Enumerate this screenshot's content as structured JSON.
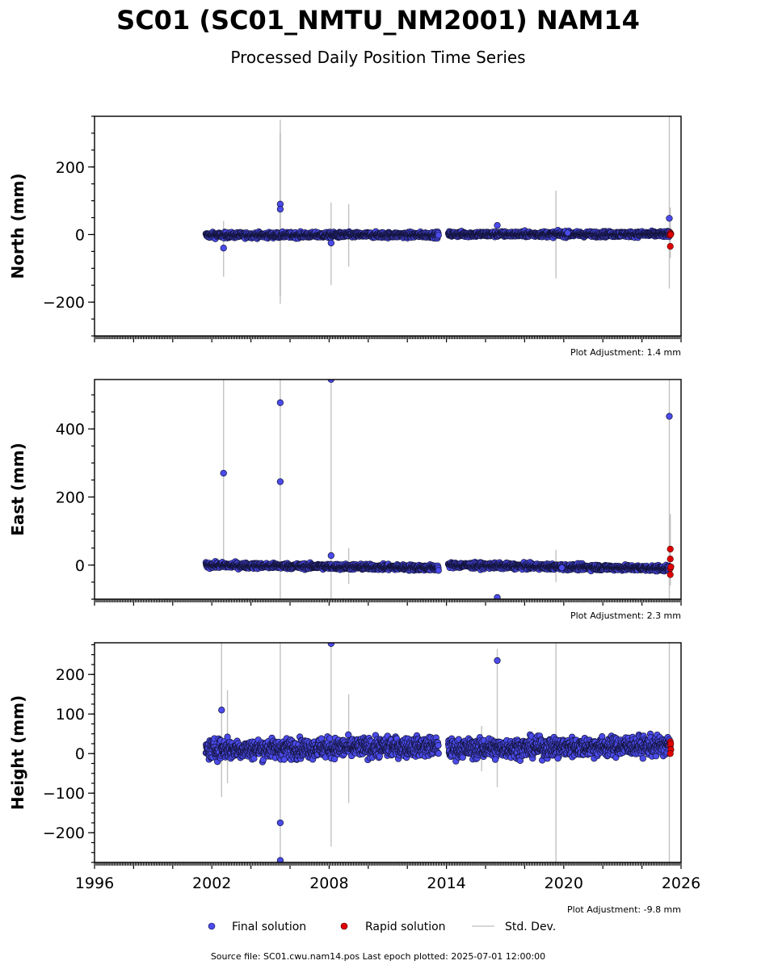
{
  "figure": {
    "title": "SC01 (SC01_NMTU_NM2001) NAM14",
    "subtitle": "Processed Daily Position Time Series",
    "source_note": "Source file: SC01.cwu.nam14.pos  Last epoch plotted: 2025-07-01 12:00:00"
  },
  "legend": {
    "final_label": "Final solution",
    "rapid_label": "Rapid solution",
    "std_label": "Std. Dev."
  },
  "colors": {
    "final": "#4b4bec",
    "final_edge": "#14143c",
    "rapid": "#e00000",
    "std_dev": "#b4b4b4"
  },
  "chart_data": [
    {
      "type": "scatter",
      "name": "north",
      "ylabel": "North (mm)",
      "adjustment": "Plot Adjustment: 1.4 mm",
      "xlim": [
        1996.0,
        2026.0
      ],
      "ylim": [
        -300,
        350
      ],
      "yticks": [
        -200,
        0,
        200
      ],
      "xtick_labels": [],
      "baseline": {
        "segments": [
          [
            2001.7,
            2013.6,
            -2,
            -1,
            4
          ],
          [
            2014.1,
            2025.4,
            1,
            1,
            4
          ]
        ]
      },
      "outliers": [
        [
          2002.6,
          -40
        ],
        [
          2005.5,
          90
        ],
        [
          2005.5,
          75
        ],
        [
          2008.1,
          -25
        ],
        [
          2016.6,
          27
        ],
        [
          2020.2,
          5
        ],
        [
          2025.4,
          48
        ],
        [
          2025.4,
          8
        ]
      ],
      "rapid": [
        [
          2025.45,
          5
        ],
        [
          2025.48,
          2
        ],
        [
          2025.43,
          -2
        ],
        [
          2025.45,
          -35
        ],
        [
          2025.47,
          0
        ]
      ],
      "std_dev_bars": [
        [
          2002.6,
          -125,
          40
        ],
        [
          2005.5,
          -205,
          340
        ],
        [
          2005.5,
          -180,
          300
        ],
        [
          2008.1,
          -150,
          95
        ],
        [
          2009.0,
          -95,
          90
        ],
        [
          2019.6,
          -130,
          130
        ],
        [
          2025.4,
          -160,
          350
        ],
        [
          2025.45,
          -70,
          80
        ]
      ]
    },
    {
      "type": "scatter",
      "name": "east",
      "ylabel": "East (mm)",
      "adjustment": "Plot Adjustment: 2.3 mm",
      "xlim": [
        1996.0,
        2026.0
      ],
      "ylim": [
        -100,
        545
      ],
      "yticks": [
        0,
        200,
        400
      ],
      "xtick_labels": [],
      "baseline": {
        "segments": [
          [
            2001.7,
            2013.6,
            0,
            -8,
            4
          ],
          [
            2014.1,
            2025.4,
            0,
            -10,
            4
          ]
        ]
      },
      "outliers": [
        [
          2002.6,
          270
        ],
        [
          2005.5,
          477
        ],
        [
          2005.5,
          245
        ],
        [
          2008.1,
          545
        ],
        [
          2008.1,
          28
        ],
        [
          2016.6,
          -95
        ],
        [
          2025.4,
          437
        ],
        [
          2019.9,
          -8
        ]
      ],
      "rapid": [
        [
          2025.45,
          47
        ],
        [
          2025.45,
          18
        ],
        [
          2025.45,
          -10
        ],
        [
          2025.45,
          -28
        ],
        [
          2025.48,
          -5
        ]
      ],
      "std_dev_bars": [
        [
          2002.6,
          0,
          545
        ],
        [
          2005.5,
          -100,
          545
        ],
        [
          2008.1,
          -100,
          545
        ],
        [
          2009.0,
          -55,
          50
        ],
        [
          2019.6,
          -50,
          45
        ],
        [
          2025.4,
          -100,
          545
        ],
        [
          2025.45,
          -60,
          150
        ]
      ]
    },
    {
      "type": "scatter",
      "name": "height",
      "ylabel": "Height (mm)",
      "adjustment": "Plot Adjustment: -9.8 mm",
      "xlim": [
        1996.0,
        2026.0
      ],
      "ylim": [
        -275,
        280
      ],
      "yticks": [
        -200,
        -100,
        0,
        100,
        200
      ],
      "xtick_labels": [
        "1996",
        "2002",
        "2008",
        "2014",
        "2020",
        "2026"
      ],
      "baseline": {
        "segments": [
          [
            2001.7,
            2013.6,
            10,
            18,
            12
          ],
          [
            2014.1,
            2025.4,
            12,
            20,
            12
          ]
        ]
      },
      "outliers": [
        [
          2002.5,
          110
        ],
        [
          2002.8,
          42
        ],
        [
          2005.5,
          -175
        ],
        [
          2005.5,
          -270
        ],
        [
          2005.7,
          -15
        ],
        [
          2008.1,
          278
        ],
        [
          2016.6,
          235
        ],
        [
          2016.5,
          -15
        ],
        [
          2019.7,
          -12
        ],
        [
          2025.4,
          35
        ]
      ],
      "rapid": [
        [
          2025.45,
          30
        ],
        [
          2025.45,
          20
        ],
        [
          2025.48,
          10
        ],
        [
          2025.45,
          0
        ],
        [
          2025.47,
          25
        ]
      ],
      "std_dev_bars": [
        [
          2002.5,
          -110,
          280
        ],
        [
          2002.8,
          -75,
          160
        ],
        [
          2005.5,
          -275,
          280
        ],
        [
          2008.1,
          -235,
          280
        ],
        [
          2009.0,
          -125,
          150
        ],
        [
          2015.8,
          -45,
          70
        ],
        [
          2016.6,
          -85,
          265
        ],
        [
          2019.6,
          -275,
          280
        ],
        [
          2025.4,
          -275,
          280
        ]
      ]
    }
  ]
}
